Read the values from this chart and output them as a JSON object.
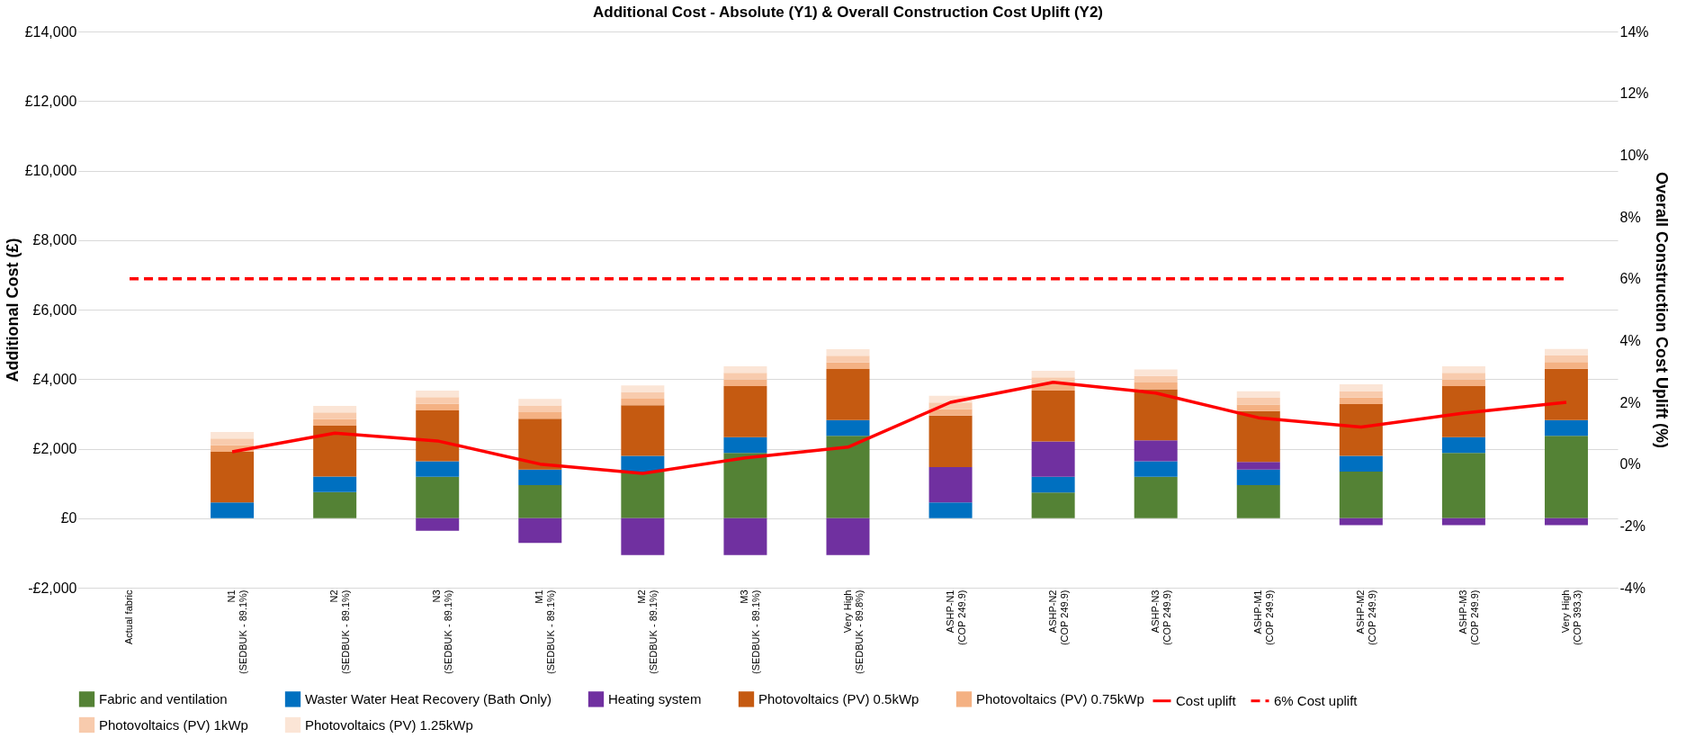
{
  "chart_data": {
    "type": "bar",
    "title": "Additional Cost - Absolute (Y1) & Overall Construction  Cost Uplift (Y2)",
    "ylabel": "Additional Cost (£)",
    "y2label": "Overall Construction Cost Uplift (%)",
    "categories": [
      "Actual fabric",
      "N1\n(SEDBUK - 89.1%)",
      "N2\n(SEDBUK - 89.1%)",
      "N3\n(SEDBUK - 89.1%)",
      "M1\n(SEDBUK - 89.1%)",
      "M2\n(SEDBUK - 89.1%)",
      "M3\n(SEDBUK - 89.1%)",
      "Very High\n(SEDBUK - 89.8%)",
      "ASHP-N1\n(COP 249.9)",
      "ASHP-N2\n(COP 249.9)",
      "ASHP-N3\n(COP 249.9)",
      "ASHP-M1\n(COP 249.9)",
      "ASHP-M2\n(COP 249.9)",
      "ASHP-M3\n(COP 249.9)",
      "Very High\n(COP 393.3)"
    ],
    "stacked": true,
    "grid": "y",
    "legend": "bottom",
    "marker": "none",
    "series": [
      {
        "name": "Fabric and ventilation",
        "color": "#548235",
        "values": [
          null,
          0,
          750,
          1190,
          950,
          1340,
          1880,
          2370,
          0,
          740,
          1190,
          950,
          1340,
          1880,
          2370
        ]
      },
      {
        "name": "Waster Water Heat Recovery (Bath Only)",
        "color": "#0070c0",
        "values": [
          null,
          450,
          450,
          450,
          450,
          450,
          450,
          450,
          450,
          450,
          450,
          450,
          450,
          450,
          450
        ]
      },
      {
        "name": "Heating system",
        "color": "#7030a0",
        "values": [
          null,
          0,
          0,
          -360,
          -710,
          -1060,
          -1060,
          -1060,
          1020,
          1020,
          600,
          220,
          -200,
          -200,
          -200
        ]
      },
      {
        "name": "Photovoltaics (PV) 0.5kWp",
        "color": "#c55a11",
        "values": [
          null,
          1460,
          1460,
          1460,
          1460,
          1460,
          1470,
          1470,
          1480,
          1460,
          1470,
          1460,
          1490,
          1470,
          1480
        ]
      },
      {
        "name": "Photovoltaics (PV) 0.75kWp",
        "color": "#f4b183",
        "values": [
          null,
          190,
          190,
          190,
          190,
          190,
          190,
          190,
          190,
          190,
          190,
          190,
          190,
          190,
          190
        ]
      },
      {
        "name": "Photovoltaics (PV) 1kWp",
        "color": "#f8cbad",
        "values": [
          null,
          190,
          190,
          190,
          190,
          190,
          190,
          190,
          190,
          190,
          190,
          190,
          190,
          190,
          190
        ]
      },
      {
        "name": "Photovoltaics (PV) 1.25kWp",
        "color": "#fbe5d6",
        "values": [
          null,
          190,
          190,
          190,
          190,
          190,
          190,
          190,
          190,
          190,
          190,
          190,
          190,
          190,
          190
        ]
      },
      {
        "name": "Cost uplift",
        "type": "line",
        "axis": "y2",
        "line_style": "solid",
        "color": "#ff0000",
        "values": [
          null,
          0.4,
          1.0,
          0.75,
          0.0,
          -0.3,
          0.2,
          0.55,
          2.0,
          2.65,
          2.3,
          1.5,
          1.2,
          1.65,
          2.0
        ]
      },
      {
        "name": "6% Cost uplift",
        "type": "line",
        "axis": "y2",
        "line_style": "dashed",
        "color": "#ff0000",
        "values": [
          6,
          6,
          6,
          6,
          6,
          6,
          6,
          6,
          6,
          6,
          6,
          6,
          6,
          6,
          6
        ]
      }
    ],
    "ylim": [
      -2000,
      14000
    ],
    "yticks": [
      {
        "value": -2000,
        "label": "-£2,000"
      },
      {
        "value": 0,
        "label": "£0"
      },
      {
        "value": 2000,
        "label": "£2,000"
      },
      {
        "value": 4000,
        "label": "£4,000"
      },
      {
        "value": 6000,
        "label": "£6,000"
      },
      {
        "value": 8000,
        "label": "£8,000"
      },
      {
        "value": 10000,
        "label": "£10,000"
      },
      {
        "value": 12000,
        "label": "£12,000"
      },
      {
        "value": 14000,
        "label": "£14,000"
      }
    ],
    "y2lim": [
      -4,
      14
    ],
    "y2ticks": [
      {
        "value": -4,
        "label": "-4%"
      },
      {
        "value": -2,
        "label": "-2%"
      },
      {
        "value": 0,
        "label": "0%"
      },
      {
        "value": 2,
        "label": "2%"
      },
      {
        "value": 4,
        "label": "4%"
      },
      {
        "value": 6,
        "label": "6%"
      },
      {
        "value": 8,
        "label": "8%"
      },
      {
        "value": 10,
        "label": "10%"
      },
      {
        "value": 12,
        "label": "12%"
      },
      {
        "value": 14,
        "label": "14%"
      }
    ]
  }
}
